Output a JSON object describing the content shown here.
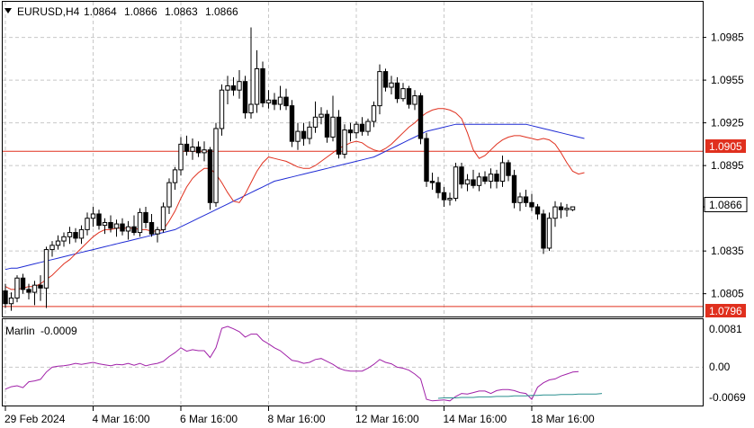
{
  "header": {
    "symbol": "EURUSD,H4",
    "open": "1.0864",
    "high": "1.0866",
    "low": "1.0863",
    "close": "1.0866"
  },
  "indicator": {
    "name": "Marlin",
    "value": "-0.0009",
    "y_ticks": [
      "0.0081",
      "0.00",
      "-0.0069"
    ]
  },
  "chart_data": {
    "type": "candlestick",
    "symbol": "EURUSD",
    "timeframe": "H4",
    "ylim": [
      1.0789,
      1.101
    ],
    "y_ticks": [
      "1.0985",
      "1.0955",
      "1.0925",
      "1.0895",
      "1.0866",
      "1.0835",
      "1.0805"
    ],
    "x_tick_labels": [
      "29 Feb 2024",
      "4 Mar 16:00",
      "6 Mar 16:00",
      "8 Mar 16:00",
      "12 Mar 16:00",
      "14 Mar 16:00",
      "18 Mar 16:00"
    ],
    "horizontal_levels": [
      {
        "value": "1.0905",
        "color": "#e0301e"
      },
      {
        "value": "1.0796",
        "color": "#e0301e"
      }
    ],
    "current_price_label": "1.0866",
    "candles": [
      [
        1.0807,
        1.0812,
        1.0795,
        1.0798
      ],
      [
        1.0798,
        1.0806,
        1.0793,
        1.0802
      ],
      [
        1.0802,
        1.0818,
        1.0799,
        1.0816
      ],
      [
        1.0816,
        1.0819,
        1.0805,
        1.0808
      ],
      [
        1.0808,
        1.0812,
        1.0801,
        1.0806
      ],
      [
        1.0806,
        1.0814,
        1.0797,
        1.0811
      ],
      [
        1.0811,
        1.0818,
        1.08,
        1.0809
      ],
      [
        1.0809,
        1.0838,
        1.0795,
        1.0836
      ],
      [
        1.0836,
        1.0842,
        1.0831,
        1.0839
      ],
      [
        1.0839,
        1.0846,
        1.0836,
        1.0842
      ],
      [
        1.0842,
        1.0848,
        1.0838,
        1.0845
      ],
      [
        1.0845,
        1.0852,
        1.084,
        1.0848
      ],
      [
        1.0848,
        1.0851,
        1.0841,
        1.0844
      ],
      [
        1.0844,
        1.0853,
        1.084,
        1.085
      ],
      [
        1.085,
        1.0862,
        1.0846,
        1.0858
      ],
      [
        1.0858,
        1.0866,
        1.0852,
        1.0861
      ],
      [
        1.0861,
        1.0864,
        1.085,
        1.0853
      ],
      [
        1.0853,
        1.0858,
        1.0847,
        1.0855
      ],
      [
        1.0855,
        1.086,
        1.0848,
        1.0851
      ],
      [
        1.0851,
        1.0857,
        1.0845,
        1.0854
      ],
      [
        1.0854,
        1.0858,
        1.0846,
        1.0849
      ],
      [
        1.0849,
        1.0856,
        1.0843,
        1.0852
      ],
      [
        1.0852,
        1.086,
        1.0846,
        1.0848
      ],
      [
        1.0848,
        1.0865,
        1.0845,
        1.0862
      ],
      [
        1.0862,
        1.0866,
        1.0851,
        1.0855
      ],
      [
        1.0855,
        1.0861,
        1.0845,
        1.0847
      ],
      [
        1.0847,
        1.0852,
        1.0841,
        1.085
      ],
      [
        1.085,
        1.0869,
        1.0848,
        1.0866
      ],
      [
        1.0866,
        1.0886,
        1.0861,
        1.0883
      ],
      [
        1.0883,
        1.0894,
        1.0878,
        1.0892
      ],
      [
        1.0892,
        1.0915,
        1.0888,
        1.091
      ],
      [
        1.091,
        1.0916,
        1.0902,
        1.0905
      ],
      [
        1.0905,
        1.0914,
        1.0899,
        1.0908
      ],
      [
        1.0908,
        1.0912,
        1.0901,
        1.0904
      ],
      [
        1.0904,
        1.0912,
        1.0898,
        1.0906
      ],
      [
        1.0906,
        1.0908,
        1.0864,
        1.0869
      ],
      [
        1.0869,
        1.0925,
        1.0866,
        1.0921
      ],
      [
        1.0921,
        1.0952,
        1.0916,
        1.0948
      ],
      [
        1.0948,
        1.0958,
        1.0938,
        1.0951
      ],
      [
        1.0951,
        1.0957,
        1.0944,
        1.0948
      ],
      [
        1.0948,
        1.0962,
        1.0942,
        1.0954
      ],
      [
        1.0954,
        1.0958,
        1.0928,
        1.0932
      ],
      [
        1.0932,
        1.0992,
        1.0928,
        1.0938
      ],
      [
        1.0938,
        1.0976,
        1.0932,
        1.0963
      ],
      [
        1.0963,
        1.0968,
        1.0936,
        1.0939
      ],
      [
        1.0939,
        1.0948,
        1.0935,
        1.0941
      ],
      [
        1.0941,
        1.0946,
        1.0934,
        1.0938
      ],
      [
        1.0938,
        1.0951,
        1.0934,
        1.0943
      ],
      [
        1.0943,
        1.0949,
        1.0934,
        1.0937
      ],
      [
        1.0937,
        1.0941,
        1.0908,
        1.0912
      ],
      [
        1.0912,
        1.0925,
        1.0906,
        1.0919
      ],
      [
        1.0919,
        1.0925,
        1.0909,
        1.0914
      ],
      [
        1.0914,
        1.0926,
        1.091,
        1.0922
      ],
      [
        1.0922,
        1.094,
        1.0918,
        1.0929
      ],
      [
        1.0929,
        1.0936,
        1.0924,
        1.0931
      ],
      [
        1.0931,
        1.0934,
        1.0911,
        1.0915
      ],
      [
        1.0915,
        1.0944,
        1.0912,
        1.0929
      ],
      [
        1.0929,
        1.0934,
        1.09,
        1.0903
      ],
      [
        1.0903,
        1.0924,
        1.09,
        1.092
      ],
      [
        1.092,
        1.0925,
        1.0912,
        1.0918
      ],
      [
        1.0918,
        1.0926,
        1.0914,
        1.0924
      ],
      [
        1.0924,
        1.0929,
        1.0916,
        1.0919
      ],
      [
        1.0919,
        1.0928,
        1.0916,
        1.0926
      ],
      [
        1.0926,
        1.094,
        1.0922,
        1.0937
      ],
      [
        1.0937,
        1.0966,
        1.0931,
        1.0961
      ],
      [
        1.0961,
        1.0963,
        1.0947,
        1.095
      ],
      [
        1.095,
        1.0958,
        1.0945,
        1.0953
      ],
      [
        1.0953,
        1.0957,
        1.0939,
        1.0942
      ],
      [
        1.0942,
        1.0953,
        1.094,
        1.0949
      ],
      [
        1.0949,
        1.0951,
        1.0935,
        1.0938
      ],
      [
        1.0938,
        1.0948,
        1.0934,
        1.0944
      ],
      [
        1.0944,
        1.0946,
        1.091,
        1.0914
      ],
      [
        1.0914,
        1.0918,
        1.088,
        1.0884
      ],
      [
        1.0884,
        1.089,
        1.0878,
        1.0883
      ],
      [
        1.0883,
        1.0887,
        1.0872,
        1.0876
      ],
      [
        1.0876,
        1.088,
        1.0866,
        1.0871
      ],
      [
        1.0871,
        1.0876,
        1.0867,
        1.0872
      ],
      [
        1.0872,
        1.0897,
        1.087,
        1.0894
      ],
      [
        1.0894,
        1.0897,
        1.0879,
        1.0882
      ],
      [
        1.0882,
        1.0889,
        1.0877,
        1.0885
      ],
      [
        1.0885,
        1.0892,
        1.0879,
        1.0881
      ],
      [
        1.0881,
        1.089,
        1.0877,
        1.0887
      ],
      [
        1.0887,
        1.0891,
        1.0882,
        1.0884
      ],
      [
        1.0884,
        1.0893,
        1.0879,
        1.0889
      ],
      [
        1.0889,
        1.0892,
        1.0879,
        1.0884
      ],
      [
        1.0884,
        1.0902,
        1.088,
        1.0897
      ],
      [
        1.0897,
        1.0899,
        1.0884,
        1.0888
      ],
      [
        1.0888,
        1.0892,
        1.0865,
        1.0869
      ],
      [
        1.0869,
        1.0876,
        1.0863,
        1.0873
      ],
      [
        1.0873,
        1.0878,
        1.0866,
        1.0869
      ],
      [
        1.0869,
        1.0875,
        1.0863,
        1.0866
      ],
      [
        1.0866,
        1.0868,
        1.0857,
        1.0861
      ],
      [
        1.0861,
        1.0864,
        1.0833,
        1.0837
      ],
      [
        1.0837,
        1.0862,
        1.0835,
        1.0858
      ],
      [
        1.0858,
        1.087,
        1.0852,
        1.0866
      ],
      [
        1.0866,
        1.0869,
        1.0858,
        1.0864
      ],
      [
        1.0864,
        1.0868,
        1.0859,
        1.0865
      ],
      [
        1.0864,
        1.0866,
        1.0863,
        1.0866
      ]
    ],
    "ma_fast": [
      1.081,
      1.0808,
      1.0808,
      1.0809,
      1.081,
      1.081,
      1.0812,
      1.0815,
      1.0818,
      1.0822,
      1.0826,
      1.0829,
      1.0833,
      1.0837,
      1.0841,
      1.0845,
      1.0848,
      1.085,
      1.085,
      1.0851,
      1.0851,
      1.0851,
      1.0851,
      1.085,
      1.085,
      1.0849,
      1.0849,
      1.085,
      1.0856,
      1.0863,
      1.0872,
      1.088,
      1.0886,
      1.089,
      1.0893,
      1.0893,
      1.0889,
      1.0883,
      1.0876,
      1.087,
      1.0869,
      1.0875,
      1.0883,
      1.0891,
      1.0897,
      1.0901,
      1.09,
      1.0899,
      1.0898,
      1.0896,
      1.0894,
      1.0893,
      1.0893,
      1.0895,
      1.0898,
      1.0901,
      1.0904,
      1.0907,
      1.0909,
      1.0911,
      1.0912,
      1.0911,
      1.0908,
      1.0906,
      1.0905,
      1.0907,
      1.091,
      1.0914,
      1.0918,
      1.0922,
      1.0925,
      1.0929,
      1.0932,
      1.0934,
      1.0935,
      1.0935,
      1.0934,
      1.0932,
      1.0928,
      1.0918,
      1.0906,
      1.09,
      1.0902,
      1.0906,
      1.091,
      1.0913,
      1.0915,
      1.0916,
      1.0916,
      1.0915,
      1.0914,
      1.0913,
      1.0914,
      1.0913,
      1.091,
      1.0904,
      1.0897,
      1.0891,
      1.0889,
      1.089
    ],
    "ma_slow": [
      1.0822,
      1.0823,
      1.0823,
      1.0824,
      1.0825,
      1.0826,
      1.0827,
      1.0828,
      1.0829,
      1.083,
      1.0831,
      1.0832,
      1.0833,
      1.0834,
      1.0835,
      1.0836,
      1.0837,
      1.0838,
      1.0839,
      1.084,
      1.0841,
      1.0842,
      1.0843,
      1.0844,
      1.0845,
      1.0846,
      1.0847,
      1.0848,
      1.0849,
      1.085,
      1.0852,
      1.0854,
      1.0856,
      1.0858,
      1.086,
      1.0862,
      1.0864,
      1.0866,
      1.0868,
      1.087,
      1.0872,
      1.0874,
      1.0876,
      1.0878,
      1.088,
      1.0882,
      1.0884,
      1.0885,
      1.0886,
      1.0887,
      1.0888,
      1.0889,
      1.089,
      1.0891,
      1.0892,
      1.0893,
      1.0894,
      1.0895,
      1.0896,
      1.0897,
      1.0898,
      1.0899,
      1.09,
      1.0901,
      1.0903,
      1.0905,
      1.0907,
      1.0909,
      1.0911,
      1.0913,
      1.0915,
      1.0917,
      1.0919,
      1.092,
      1.0921,
      1.0922,
      1.0923,
      1.0924,
      1.0924,
      1.0924,
      1.0924,
      1.0924,
      1.0924,
      1.0924,
      1.0924,
      1.0924,
      1.0924,
      1.0924,
      1.0924,
      1.0924,
      1.0923,
      1.0922,
      1.0921,
      1.092,
      1.0919,
      1.0918,
      1.0917,
      1.0916,
      1.0915,
      1.0914
    ],
    "marlin": {
      "ylim": [
        -0.0075,
        0.0095
      ],
      "values": [
        -0.0045,
        -0.004,
        -0.0038,
        -0.0042,
        -0.003,
        -0.0028,
        -0.0025,
        -0.001,
        0.0,
        0.0002,
        0.0003,
        0.0005,
        0.0008,
        0.0006,
        0.0008,
        0.001,
        0.0007,
        0.0005,
        0.0003,
        0.0006,
        0.0005,
        0.0008,
        0.0004,
        0.0008,
        0.0003,
        0.0006,
        0.0008,
        0.0012,
        0.0022,
        0.003,
        0.004,
        0.0033,
        0.0036,
        0.0034,
        0.0034,
        0.002,
        0.004,
        0.008,
        0.0084,
        0.0079,
        0.0073,
        0.0062,
        0.0068,
        0.0068,
        0.0055,
        0.0048,
        0.004,
        0.0034,
        0.0024,
        0.0014,
        0.0012,
        0.0008,
        0.001,
        0.0016,
        0.0018,
        0.0012,
        0.0006,
        -0.0002,
        -0.0006,
        -0.0008,
        -0.0008,
        -0.0008,
        -0.0002,
        0.0006,
        0.0016,
        0.001,
        0.0007,
        0.0,
        -0.0002,
        -0.0006,
        -0.0014,
        -0.0024,
        -0.0066,
        -0.0069,
        -0.0068,
        -0.0067,
        -0.0069,
        -0.006,
        -0.0054,
        -0.0055,
        -0.0052,
        -0.0049,
        -0.0049,
        -0.0054,
        -0.0048,
        -0.0046,
        -0.0046,
        -0.0048,
        -0.0052,
        -0.0054,
        -0.0066,
        -0.0041,
        -0.0032,
        -0.0026,
        -0.0024,
        -0.0018,
        -0.0014,
        -0.001,
        -0.0009
      ],
      "signal": [
        -0.0064,
        -0.0063,
        -0.0063,
        -0.0063,
        -0.0062,
        -0.0062,
        -0.0062,
        -0.0061,
        -0.0061,
        -0.0061,
        -0.006,
        -0.006,
        -0.006,
        -0.0059,
        -0.0059,
        -0.0059,
        -0.0058,
        -0.0058,
        -0.0057,
        -0.0057,
        -0.0057,
        -0.0056,
        -0.0056,
        -0.0056,
        -0.0055,
        -0.0055,
        -0.0055,
        -0.0055,
        -0.0054
      ],
      "signal_start_index": 74
    }
  }
}
